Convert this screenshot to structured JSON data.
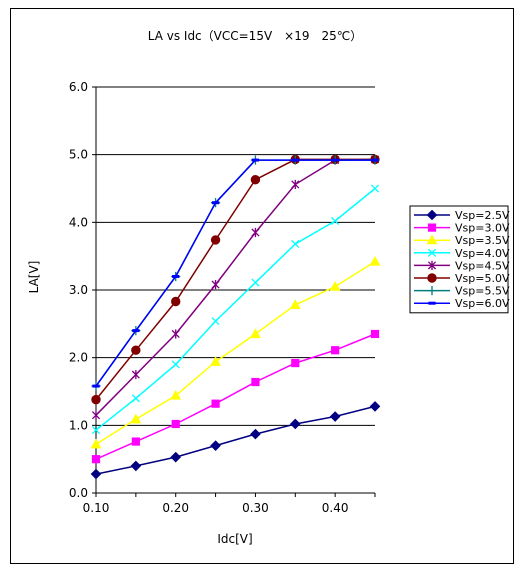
{
  "chart_data": {
    "type": "line",
    "title": "LA vs Idc（VCC=15V　×19　25℃）",
    "xlabel": "Idc[V]",
    "ylabel": "LA[V]",
    "xlim": [
      0.1,
      0.45
    ],
    "ylim": [
      0.0,
      6.0
    ],
    "x_ticks": [
      0.1,
      0.2,
      0.3,
      0.4
    ],
    "x_tick_labels": [
      "0.10",
      "0.20",
      "0.30",
      "0.40"
    ],
    "y_ticks": [
      0,
      1,
      2,
      3,
      4,
      5,
      6
    ],
    "y_tick_labels": [
      "0.0",
      "1.0",
      "2.0",
      "3.0",
      "4.0",
      "5.0",
      "6.0"
    ],
    "grid": "horizontal",
    "legend_position": "right",
    "x": [
      0.1,
      0.15,
      0.2,
      0.25,
      0.3,
      0.35,
      0.4,
      0.45
    ],
    "series": [
      {
        "name": "Vsp=2.5V",
        "color": "#000080",
        "marker": "diamond",
        "values": [
          0.28,
          0.4,
          0.53,
          0.7,
          0.87,
          1.02,
          1.13,
          1.28
        ]
      },
      {
        "name": "Vsp=3.0V",
        "color": "#ff00ff",
        "marker": "square",
        "values": [
          0.5,
          0.76,
          1.02,
          1.32,
          1.64,
          1.92,
          2.11,
          2.35
        ]
      },
      {
        "name": "Vsp=3.5V",
        "color": "#ffff00",
        "marker": "triangle",
        "values": [
          0.72,
          1.09,
          1.44,
          1.94,
          2.35,
          2.78,
          3.05,
          3.42
        ]
      },
      {
        "name": "Vsp=4.0V",
        "color": "#00ffff",
        "marker": "x",
        "values": [
          0.93,
          1.4,
          1.9,
          2.54,
          3.11,
          3.68,
          4.02,
          4.5
        ]
      },
      {
        "name": "Vsp=4.5V",
        "color": "#800080",
        "marker": "star",
        "values": [
          1.15,
          1.75,
          2.35,
          3.08,
          3.85,
          4.56,
          4.92,
          4.93
        ]
      },
      {
        "name": "Vsp=5.0V",
        "color": "#800000",
        "marker": "circle",
        "values": [
          1.38,
          2.11,
          2.83,
          3.74,
          4.63,
          4.93,
          4.93,
          4.93
        ]
      },
      {
        "name": "Vsp=5.5V",
        "color": "#008080",
        "marker": "plus",
        "values": [
          1.58,
          2.4,
          3.2,
          4.29,
          4.92,
          4.92,
          4.92,
          4.92
        ]
      },
      {
        "name": "Vsp=6.0V",
        "color": "#0000ff",
        "marker": "dash",
        "values": [
          1.58,
          2.4,
          3.2,
          4.29,
          4.92,
          4.92,
          4.92,
          4.92
        ]
      }
    ]
  }
}
